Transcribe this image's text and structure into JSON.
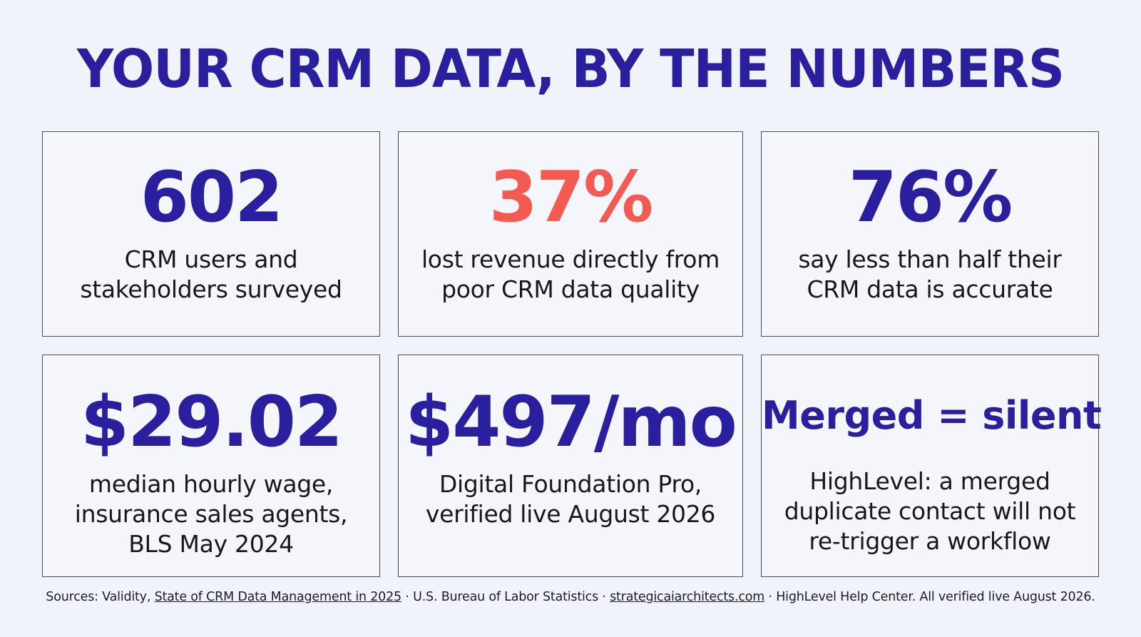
{
  "title": "YOUR CRM DATA, BY THE NUMBERS",
  "colors": {
    "primary": "#2a1f9e",
    "accent": "#f25a52",
    "background": "#f1f3fb"
  },
  "cards": [
    {
      "stat": "602",
      "desc_lines": [
        "CRM users and",
        "stakeholders surveyed"
      ]
    },
    {
      "stat": "37%",
      "desc_lines": [
        "lost revenue directly from",
        "poor CRM data quality"
      ]
    },
    {
      "stat": "76%",
      "desc_lines": [
        "say less than half their",
        "CRM data is accurate"
      ]
    },
    {
      "stat": "$29.02",
      "desc_lines": [
        "median hourly wage,",
        "insurance sales agents,",
        "BLS May 2024"
      ]
    },
    {
      "stat": "$497/mo",
      "desc_lines": [
        "Digital Foundation Pro,",
        "verified live August 2026"
      ]
    },
    {
      "stat": "Merged = silent",
      "desc_lines": [
        "HighLevel: a merged",
        "duplicate contact will not",
        "re-trigger a workflow"
      ]
    }
  ],
  "sources": {
    "prefix": "Sources: Validity,",
    "link1": "State of CRM Data Management in 2025",
    "sep1": "· U.S. Bureau of Labor Statistics ·",
    "link2": "strategicaiarchitects.com",
    "suffix": "· HighLevel Help Center. All verified live August 2026."
  }
}
